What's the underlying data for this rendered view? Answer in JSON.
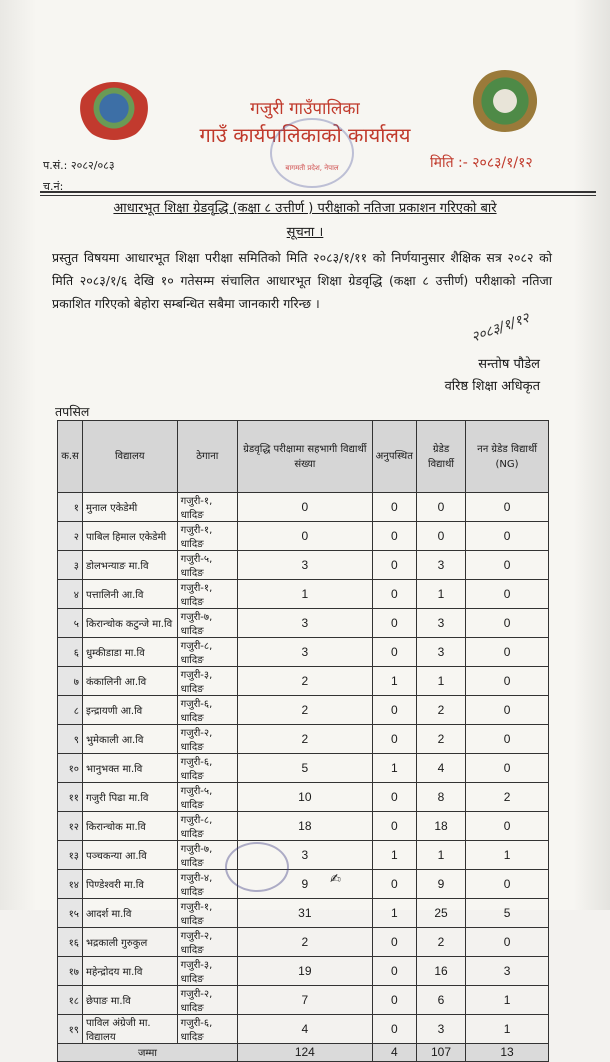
{
  "header": {
    "office_name": "गजुरी गाउँपालिका",
    "office_sub": "गाउँ कार्यपालिकाको कार्यालय",
    "stamp_text": "बागमती प्रदेश, नेपाल",
    "ref_no": "प.सं.: २०८२/०८३",
    "cha_no": "च.नं:",
    "date": "मिति :- २०८३/१/१२"
  },
  "subject": {
    "line1": "आधारभूत शिक्षा ग्रेडवृद्धि (कक्षा ८ उत्तीर्ण ) परीक्षाको नतिजा प्रकाशन गरिएको बारे",
    "line2": "सूचना ।"
  },
  "body_text": "प्रस्तुत विषयमा आधारभूत शिक्षा परीक्षा समितिको मिति २०८३/१/११ को निर्णयानुसार शैक्षिक सत्र २०८२ को मिति २०८३/१/६ देखि १० गतेसम्म संचालित आधारभूत शिक्षा ग्रेडवृद्धि (कक्षा ८ उत्तीर्ण) परीक्षाको नतिजा प्रकाशित गरिएको बेहोरा सम्बन्धित सबैमा जानकारी गरिन्छ ।",
  "signature": {
    "mark": "२०८३/१/१२",
    "name": "सन्तोष पौडेल",
    "title": "वरिष्ठ शिक्षा अधिकृत"
  },
  "table": {
    "caption": "तपसिल",
    "headers": [
      "क.स",
      "विद्यालय",
      "ठेगाना",
      "ग्रेडवृद्धि परीक्षामा सहभागी विद्यार्थी संख्या",
      "अनुपस्थित",
      "ग्रेडेड विद्यार्थी",
      "नन ग्रेडेड विद्यार्थी (NG)"
    ],
    "rows": [
      [
        "१",
        "मुनाल एकेडेमी",
        "गजुरी-१, धादिङ",
        "0",
        "0",
        "0",
        "0"
      ],
      [
        "२",
        "पाबिल हिमाल एकेडेमी",
        "गजुरी-१, धादिङ",
        "0",
        "0",
        "0",
        "0"
      ],
      [
        "३",
        "डोलभन्याङ मा.वि",
        "गजुरी-५, धादिङ",
        "3",
        "0",
        "3",
        "0"
      ],
      [
        "४",
        "पत्तालिनी आ.वि",
        "गजुरी-१, धादिङ",
        "1",
        "0",
        "1",
        "0"
      ],
      [
        "५",
        "किरान्चोक कटुन्जे मा.वि",
        "गजुरी-७, धादिङ",
        "3",
        "0",
        "3",
        "0"
      ],
      [
        "६",
        "धुम्कीडाडा मा.वि",
        "गजुरी-८, धादिङ",
        "3",
        "0",
        "3",
        "0"
      ],
      [
        "७",
        "कंकालिनी आ.वि",
        "गजुरी-३, धादिङ",
        "2",
        "1",
        "1",
        "0"
      ],
      [
        "८",
        "इन्द्रायणी आ.वि",
        "गजुरी-६, धादिङ",
        "2",
        "0",
        "2",
        "0"
      ],
      [
        "९",
        "भुमेकाली आ.वि",
        "गजुरी-२, धादिङ",
        "2",
        "0",
        "2",
        "0"
      ],
      [
        "१०",
        "भानुभक्त मा.वि",
        "गजुरी-६, धादिङ",
        "5",
        "1",
        "4",
        "0"
      ],
      [
        "११",
        "गजुरी पिढा मा.वि",
        "गजुरी-५, धादिङ",
        "10",
        "0",
        "8",
        "2"
      ],
      [
        "१२",
        "किरान्चोक मा.वि",
        "गजुरी-८, धादिङ",
        "18",
        "0",
        "18",
        "0"
      ],
      [
        "१३",
        "पञ्चकन्या आ.वि",
        "गजुरी-७, धादिङ",
        "3",
        "1",
        "1",
        "1"
      ],
      [
        "१४",
        "पिण्डेश्वरी मा.वि",
        "गजुरी-४, धादिङ",
        "9",
        "0",
        "9",
        "0"
      ],
      [
        "१५",
        "आदर्श मा.वि",
        "गजुरी-१, धादिङ",
        "31",
        "1",
        "25",
        "5"
      ],
      [
        "१६",
        "भद्रकाली गुरुकुल",
        "गजुरी-२, धादिङ",
        "2",
        "0",
        "2",
        "0"
      ],
      [
        "१७",
        "महेन्द्रोदय मा.वि",
        "गजुरी-३, धादिङ",
        "19",
        "0",
        "16",
        "3"
      ],
      [
        "१८",
        "छेपाङ मा.वि",
        "गजुरी-२, धादिङ",
        "7",
        "0",
        "6",
        "1"
      ],
      [
        "१९",
        "पाविल अंग्रेजी मा. विद्यालय",
        "गजुरी-६, धादिङ",
        "4",
        "0",
        "3",
        "1"
      ]
    ],
    "total": {
      "label": "जम्मा",
      "values": [
        "124",
        "4",
        "107",
        "13"
      ]
    }
  }
}
